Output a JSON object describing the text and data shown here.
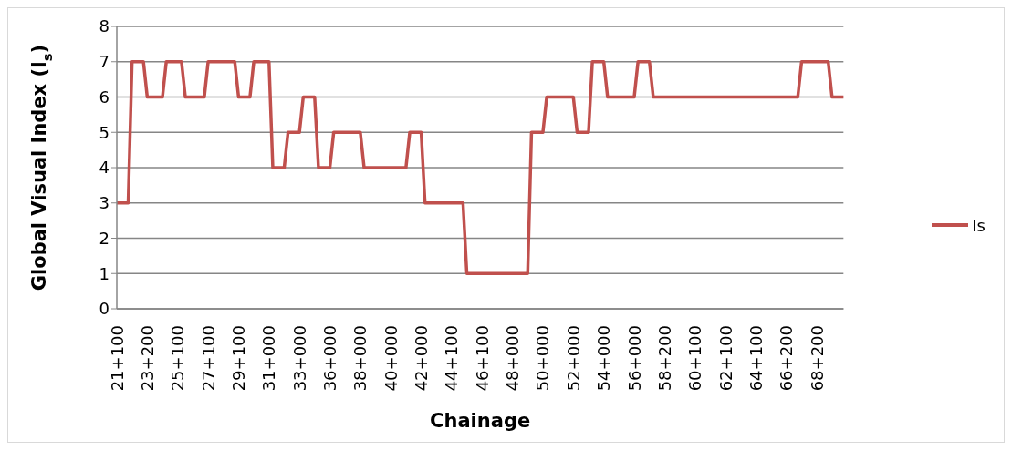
{
  "chart_data": {
    "type": "line",
    "xlabel": "Chainage",
    "ylabel": "Global Visual Index (I$_{s}$)",
    "categories": [
      "21+100",
      null,
      null,
      null,
      null,
      null,
      null,
      null,
      "23+200",
      null,
      null,
      null,
      null,
      null,
      null,
      null,
      "25+100",
      null,
      null,
      null,
      null,
      null,
      null,
      null,
      "27+100",
      null,
      null,
      null,
      null,
      null,
      null,
      null,
      "29+100",
      null,
      null,
      null,
      null,
      null,
      null,
      null,
      "31+000",
      null,
      null,
      null,
      null,
      null,
      null,
      null,
      "33+000",
      null,
      null,
      null,
      null,
      null,
      null,
      null,
      "36+000",
      null,
      null,
      null,
      null,
      null,
      null,
      null,
      "38+000",
      null,
      null,
      null,
      null,
      null,
      null,
      null,
      "40+000",
      null,
      null,
      null,
      null,
      null,
      null,
      null,
      "42+000",
      null,
      null,
      null,
      null,
      null,
      null,
      null,
      "44+100",
      null,
      null,
      null,
      null,
      null,
      null,
      null,
      "46+100",
      null,
      null,
      null,
      null,
      null,
      null,
      null,
      "48+000",
      null,
      null,
      null,
      null,
      null,
      null,
      null,
      "50+000",
      null,
      null,
      null,
      null,
      null,
      null,
      null,
      "52+000",
      null,
      null,
      null,
      null,
      null,
      null,
      null,
      "54+000",
      null,
      null,
      null,
      null,
      null,
      null,
      null,
      "56+000",
      null,
      null,
      null,
      null,
      null,
      null,
      null,
      "58+200",
      null,
      null,
      null,
      null,
      null,
      null,
      null,
      "60+100",
      null,
      null,
      null,
      null,
      null,
      null,
      null,
      "62+100",
      null,
      null,
      null,
      null,
      null,
      null,
      null,
      "64+100",
      null,
      null,
      null,
      null,
      null,
      null,
      null,
      "66+200",
      null,
      null,
      null,
      null,
      null,
      null,
      null,
      "68+200",
      null,
      null,
      null,
      null,
      null,
      null,
      null
    ],
    "series": [
      {
        "name": "Is",
        "color": "#c0504d",
        "values": [
          3,
          3,
          3,
          3,
          7,
          7,
          7,
          7,
          6,
          6,
          6,
          6,
          6,
          7,
          7,
          7,
          7,
          7,
          6,
          6,
          6,
          6,
          6,
          6,
          7,
          7,
          7,
          7,
          7,
          7,
          7,
          7,
          6,
          6,
          6,
          6,
          7,
          7,
          7,
          7,
          7,
          4,
          4,
          4,
          4,
          5,
          5,
          5,
          5,
          6,
          6,
          6,
          6,
          4,
          4,
          4,
          4,
          5,
          5,
          5,
          5,
          5,
          5,
          5,
          5,
          4,
          4,
          4,
          4,
          4,
          4,
          4,
          4,
          4,
          4,
          4,
          4,
          5,
          5,
          5,
          5,
          3,
          3,
          3,
          3,
          3,
          3,
          3,
          3,
          3,
          3,
          3,
          1,
          1,
          1,
          1,
          1,
          1,
          1,
          1,
          1,
          1,
          1,
          1,
          1,
          1,
          1,
          1,
          1,
          5,
          5,
          5,
          5,
          6,
          6,
          6,
          6,
          6,
          6,
          6,
          6,
          5,
          5,
          5,
          5,
          7,
          7,
          7,
          7,
          6,
          6,
          6,
          6,
          6,
          6,
          6,
          6,
          7,
          7,
          7,
          7,
          6,
          6,
          6,
          6,
          6,
          6,
          6,
          6,
          6,
          6,
          6,
          6,
          6,
          6,
          6,
          6,
          6,
          6,
          6,
          6,
          6,
          6,
          6,
          6,
          6,
          6,
          6,
          6,
          6,
          6,
          6,
          6,
          6,
          6,
          6,
          6,
          6,
          6,
          6,
          7,
          7,
          7,
          7,
          7,
          7,
          7,
          7,
          6,
          6,
          6,
          6
        ]
      }
    ],
    "ylim": [
      0,
      8
    ],
    "yticks": [
      0,
      1,
      2,
      3,
      4,
      5,
      6,
      7,
      8
    ],
    "grid": "y",
    "legend": "right",
    "marker": "none",
    "line_style": "solid"
  }
}
